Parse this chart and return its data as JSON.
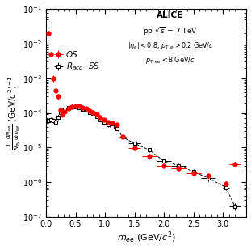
{
  "OS_x": [
    0.04,
    0.08,
    0.12,
    0.16,
    0.2,
    0.24,
    0.28,
    0.32,
    0.38,
    0.44,
    0.5,
    0.56,
    0.62,
    0.68,
    0.74,
    0.8,
    0.86,
    0.92,
    0.98,
    1.05,
    1.12,
    1.2,
    1.3,
    1.5,
    1.75,
    2.0,
    2.25,
    2.5,
    2.75,
    3.05,
    3.2
  ],
  "OS_y": [
    0.02,
    0.005,
    0.001,
    0.00045,
    0.0003,
    0.00012,
    9e-05,
    0.00011,
    0.000135,
    0.00015,
    0.00016,
    0.000155,
    0.000145,
    0.000135,
    0.000115,
    0.000105,
    9e-05,
    7.5e-05,
    6.5e-05,
    5.5e-05,
    5e-05,
    4.5e-05,
    2e-05,
    9.5e-06,
    5.5e-06,
    3e-06,
    2.5e-06,
    1.8e-06,
    1.5e-06,
    9e-07,
    3.3e-06
  ],
  "OS_xerr": [
    0.02,
    0.02,
    0.02,
    0.02,
    0.02,
    0.02,
    0.02,
    0.02,
    0.03,
    0.03,
    0.03,
    0.03,
    0.03,
    0.03,
    0.03,
    0.03,
    0.03,
    0.03,
    0.03,
    0.035,
    0.035,
    0.04,
    0.05,
    0.1,
    0.125,
    0.125,
    0.125,
    0.125,
    0.125,
    0.05,
    0.1
  ],
  "OS_yerr_lo": [
    0.003,
    0.0008,
    0.0002,
    7e-05,
    5e-05,
    2e-05,
    1.5e-05,
    1.5e-05,
    1.3e-05,
    1.3e-05,
    1.3e-05,
    1.3e-05,
    1.3e-05,
    1.3e-05,
    1.1e-05,
    9e-06,
    8e-06,
    7e-06,
    6e-06,
    5.5e-06,
    5e-06,
    4.5e-06,
    3e-06,
    1.5e-06,
    1e-06,
    5e-07,
    4e-07,
    3e-07,
    2.5e-07,
    1.5e-07,
    5e-07
  ],
  "OS_yerr_hi": [
    0.003,
    0.0008,
    0.0002,
    7e-05,
    5e-05,
    2e-05,
    1.5e-05,
    1.5e-05,
    1.3e-05,
    1.3e-05,
    1.3e-05,
    1.3e-05,
    1.3e-05,
    1.3e-05,
    1.1e-05,
    9e-06,
    8e-06,
    7e-06,
    6e-06,
    5.5e-06,
    5e-06,
    4.5e-06,
    3e-06,
    1.5e-06,
    1e-06,
    5e-07,
    4e-07,
    3e-07,
    2.5e-07,
    1.5e-07,
    5e-07
  ],
  "SS_x": [
    0.04,
    0.08,
    0.12,
    0.16,
    0.2,
    0.24,
    0.28,
    0.32,
    0.38,
    0.44,
    0.5,
    0.56,
    0.62,
    0.68,
    0.74,
    0.8,
    0.86,
    0.92,
    0.98,
    1.05,
    1.12,
    1.2,
    1.3,
    1.5,
    1.75,
    2.0,
    2.25,
    2.5,
    2.75,
    3.05,
    3.2
  ],
  "SS_y": [
    6e-05,
    6.5e-05,
    6e-05,
    5.5e-05,
    7.5e-05,
    0.000105,
    0.000115,
    0.000125,
    0.00014,
    0.00015,
    0.00015,
    0.00014,
    0.00013,
    0.00012,
    0.000105,
    9.5e-05,
    8e-05,
    6.5e-05,
    5.5e-05,
    4.5e-05,
    4e-05,
    3.5e-05,
    2e-05,
    1.3e-05,
    8.5e-06,
    4e-06,
    3e-06,
    2e-06,
    1.3e-06,
    7e-07,
    2e-07
  ],
  "SS_xerr": [
    0.02,
    0.02,
    0.02,
    0.02,
    0.02,
    0.02,
    0.02,
    0.02,
    0.03,
    0.03,
    0.03,
    0.03,
    0.03,
    0.03,
    0.03,
    0.03,
    0.03,
    0.03,
    0.03,
    0.035,
    0.035,
    0.04,
    0.05,
    0.1,
    0.125,
    0.125,
    0.125,
    0.125,
    0.125,
    0.05,
    0.1
  ],
  "SS_yerr_lo": [
    8e-06,
    1e-05,
    1e-05,
    1e-05,
    1.2e-05,
    1.3e-05,
    1.3e-05,
    1.3e-05,
    1.3e-05,
    1.3e-05,
    1.3e-05,
    1.3e-05,
    1.3e-05,
    1.3e-05,
    1.1e-05,
    9e-06,
    8e-06,
    7e-06,
    6e-06,
    5.5e-06,
    4.5e-06,
    4e-06,
    2.5e-06,
    1.8e-06,
    1.2e-06,
    6e-07,
    4.5e-07,
    3e-07,
    2.5e-07,
    1.3e-07,
    5e-08
  ],
  "SS_yerr_hi": [
    8e-06,
    1e-05,
    1e-05,
    1e-05,
    1.2e-05,
    1.3e-05,
    1.3e-05,
    1.3e-05,
    1.3e-05,
    1.3e-05,
    1.3e-05,
    1.3e-05,
    1.3e-05,
    1.3e-05,
    1.1e-05,
    9e-06,
    8e-06,
    7e-06,
    6e-06,
    5.5e-06,
    4.5e-06,
    4e-06,
    2.5e-06,
    1.8e-06,
    1.2e-06,
    6e-07,
    4.5e-07,
    3e-07,
    2.5e-07,
    1.3e-07,
    5e-08
  ],
  "xlim": [
    0.0,
    3.4
  ],
  "ylim": [
    1e-07,
    0.1
  ],
  "xlabel": "$m_{ee}$ (GeV/$c^{2}$)",
  "ylabel": "$\\frac{1}{N_{ev}} \\frac{dN_{ee}}{dm_{ee}}$ (GeV/$c^{2}$)$^{-1}$",
  "label_OS": "OS",
  "label_SS": "$R_{acc} \\cdot SS$",
  "annotation_line1": "ALICE",
  "annotation_line2": "pp $\\sqrt{s}$ = 7 TeV",
  "annotation_line3": "$|\\eta_{e}| < 0.8$, $p_{T,e} > 0.2$ GeV/$c$",
  "annotation_line4": "$p_{T,ee} < 8$ GeV/$c$",
  "os_color": "red",
  "ss_color": "black",
  "background_color": "white"
}
